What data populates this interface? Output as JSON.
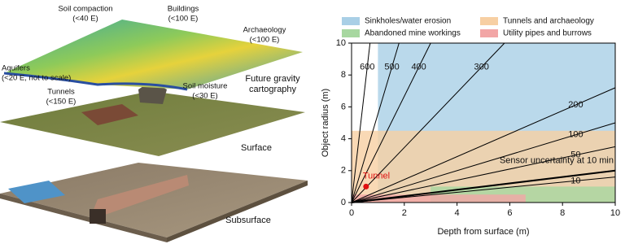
{
  "illustration": {
    "labels": [
      {
        "lines": [
          "Soil compaction",
          "(<40 E)"
        ]
      },
      {
        "lines": [
          "Buildings",
          "(<100 E)"
        ]
      },
      {
        "lines": [
          "Archaeology",
          "(<100 E)"
        ]
      },
      {
        "lines": [
          "Aquifers",
          "(<20 E, not to scale)"
        ]
      },
      {
        "lines": [
          "Future gravity",
          "cartography"
        ]
      },
      {
        "lines": [
          "Tunnels",
          "(<150 E)"
        ]
      },
      {
        "lines": [
          "Soil moisture",
          "(<30 E)"
        ]
      },
      {
        "lines": [
          "Surface"
        ]
      },
      {
        "lines": [
          "Subsurface"
        ]
      }
    ]
  },
  "chart_data": {
    "type": "line",
    "x_label": "Depth from surface (m)",
    "y_label": "Object radius (m)",
    "xlim": [
      0,
      10
    ],
    "ylim": [
      0,
      10
    ],
    "xticks": [
      0,
      2,
      4,
      6,
      8,
      10
    ],
    "yticks": [
      0,
      2,
      4,
      6,
      8,
      10
    ],
    "regions": [
      {
        "name": "Sinkholes/water erosion",
        "color": "#a9cfe6",
        "x": [
          1,
          10
        ],
        "y": [
          0,
          10
        ]
      },
      {
        "name": "Tunnels and archaeology",
        "color": "#f7cfa3",
        "x": [
          0,
          10
        ],
        "y": [
          0,
          4.5
        ]
      },
      {
        "name": "Abandoned mine workings",
        "color": "#a7d7a0",
        "x": [
          3,
          10
        ],
        "y": [
          0,
          1
        ]
      },
      {
        "name": "Utility pipes and burrows",
        "color": "#f2a6a6",
        "x": [
          0,
          6.6
        ],
        "y": [
          0,
          0.5
        ]
      }
    ],
    "series": [
      {
        "name": "600",
        "color": "#000000",
        "x": [
          0,
          0.7
        ],
        "values": [
          0,
          10
        ]
      },
      {
        "name": "500",
        "color": "#000000",
        "x": [
          0,
          1.8
        ],
        "values": [
          0,
          10
        ]
      },
      {
        "name": "400",
        "color": "#000000",
        "x": [
          0,
          3.0
        ],
        "values": [
          0,
          10
        ]
      },
      {
        "name": "300",
        "color": "#000000",
        "x": [
          0,
          5.8
        ],
        "values": [
          0,
          10
        ]
      },
      {
        "name": "200",
        "color": "#000000",
        "x": [
          0,
          10
        ],
        "values": [
          0,
          7.2
        ]
      },
      {
        "name": "100",
        "color": "#000000",
        "x": [
          0,
          10
        ],
        "values": [
          0,
          5.0
        ]
      },
      {
        "name": "50",
        "color": "#000000",
        "x": [
          0,
          10
        ],
        "values": [
          0,
          3.5
        ]
      },
      {
        "name": "10",
        "color": "#000000",
        "x": [
          0,
          10
        ],
        "values": [
          0,
          1.6
        ]
      },
      {
        "name": "Sensor uncertainty at 10 min",
        "color": "#000000",
        "x": [
          0,
          10
        ],
        "values": [
          0,
          2.0
        ]
      }
    ],
    "points": [
      {
        "name": "Tunnel",
        "color": "#e01010",
        "x": 0.55,
        "y": 1.0
      }
    ]
  }
}
